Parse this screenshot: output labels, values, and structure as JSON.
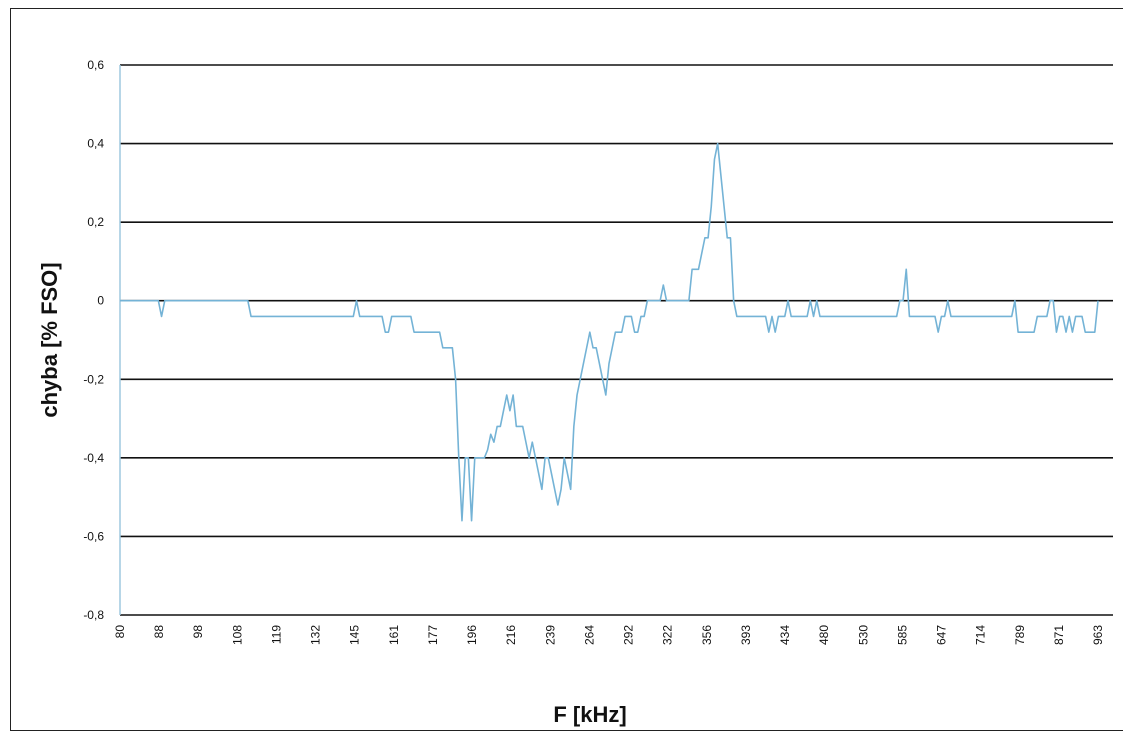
{
  "chart_data": {
    "type": "line",
    "title": "",
    "xlabel": "F [kHz]",
    "ylabel": "chyba [% FSO]",
    "ylim": [
      -0.8,
      0.6
    ],
    "yticks": [
      0.6,
      0.4,
      0.2,
      0,
      -0.2,
      -0.4,
      -0.6,
      -0.8
    ],
    "ytick_labels": [
      "0,6",
      "0,4",
      "0,2",
      "0",
      "-0,2",
      "-0,4",
      "-0,6",
      "-0,8"
    ],
    "x_tick_labels": [
      "80",
      "88",
      "98",
      "108",
      "119",
      "132",
      "145",
      "161",
      "177",
      "196",
      "216",
      "239",
      "264",
      "292",
      "322",
      "356",
      "393",
      "434",
      "480",
      "530",
      "585",
      "647",
      "714",
      "789",
      "871",
      "963"
    ],
    "grid": true,
    "legend": "none",
    "colors": {
      "line": "#74b3d6",
      "grid": "#111111",
      "axis": "#9fc9df"
    },
    "series": [
      {
        "values": [
          0,
          0,
          0,
          0,
          0,
          0,
          0,
          0,
          0,
          0,
          0,
          0,
          0,
          -0.04,
          0,
          0,
          0,
          0,
          0,
          0,
          0,
          0,
          0,
          0,
          0,
          0,
          0,
          0,
          0,
          0,
          0,
          0,
          0,
          0,
          0,
          0,
          0,
          0,
          0,
          0,
          0,
          -0.04,
          -0.04,
          -0.04,
          -0.04,
          -0.04,
          -0.04,
          -0.04,
          -0.04,
          -0.04,
          -0.04,
          -0.04,
          -0.04,
          -0.04,
          -0.04,
          -0.04,
          -0.04,
          -0.04,
          -0.04,
          -0.04,
          -0.04,
          -0.04,
          -0.04,
          -0.04,
          -0.04,
          -0.04,
          -0.04,
          -0.04,
          -0.04,
          -0.04,
          -0.04,
          -0.04,
          -0.04,
          -0.04,
          0,
          -0.04,
          -0.04,
          -0.04,
          -0.04,
          -0.04,
          -0.04,
          -0.04,
          -0.04,
          -0.08,
          -0.08,
          -0.04,
          -0.04,
          -0.04,
          -0.04,
          -0.04,
          -0.04,
          -0.04,
          -0.08,
          -0.08,
          -0.08,
          -0.08,
          -0.08,
          -0.08,
          -0.08,
          -0.08,
          -0.08,
          -0.12,
          -0.12,
          -0.12,
          -0.12,
          -0.2,
          -0.4,
          -0.56,
          -0.4,
          -0.4,
          -0.56,
          -0.4,
          -0.4,
          -0.4,
          -0.4,
          -0.38,
          -0.34,
          -0.36,
          -0.32,
          -0.32,
          -0.28,
          -0.24,
          -0.28,
          -0.24,
          -0.32,
          -0.32,
          -0.32,
          -0.36,
          -0.4,
          -0.36,
          -0.4,
          -0.44,
          -0.48,
          -0.4,
          -0.4,
          -0.44,
          -0.48,
          -0.52,
          -0.48,
          -0.4,
          -0.44,
          -0.48,
          -0.32,
          -0.24,
          -0.2,
          -0.16,
          -0.12,
          -0.08,
          -0.12,
          -0.12,
          -0.16,
          -0.2,
          -0.24,
          -0.16,
          -0.12,
          -0.08,
          -0.08,
          -0.08,
          -0.04,
          -0.04,
          -0.04,
          -0.08,
          -0.08,
          -0.04,
          -0.04,
          0,
          0,
          0,
          0,
          0,
          0.04,
          0,
          0,
          0,
          0,
          0,
          0,
          0,
          0,
          0.08,
          0.08,
          0.08,
          0.12,
          0.16,
          0.16,
          0.24,
          0.36,
          0.4,
          0.32,
          0.24,
          0.16,
          0.16,
          0,
          -0.04,
          -0.04,
          -0.04,
          -0.04,
          -0.04,
          -0.04,
          -0.04,
          -0.04,
          -0.04,
          -0.04,
          -0.08,
          -0.04,
          -0.08,
          -0.04,
          -0.04,
          -0.04,
          0,
          -0.04,
          -0.04,
          -0.04,
          -0.04,
          -0.04,
          -0.04,
          0,
          -0.04,
          0,
          -0.04,
          -0.04,
          -0.04,
          -0.04,
          -0.04,
          -0.04,
          -0.04,
          -0.04,
          -0.04,
          -0.04,
          -0.04,
          -0.04,
          -0.04,
          -0.04,
          -0.04,
          -0.04,
          -0.04,
          -0.04,
          -0.04,
          -0.04,
          -0.04,
          -0.04,
          -0.04,
          -0.04,
          -0.04,
          0,
          0,
          0.08,
          -0.04,
          -0.04,
          -0.04,
          -0.04,
          -0.04,
          -0.04,
          -0.04,
          -0.04,
          -0.04,
          -0.08,
          -0.04,
          -0.04,
          0,
          -0.04,
          -0.04,
          -0.04,
          -0.04,
          -0.04,
          -0.04,
          -0.04,
          -0.04,
          -0.04,
          -0.04,
          -0.04,
          -0.04,
          -0.04,
          -0.04,
          -0.04,
          -0.04,
          -0.04,
          -0.04,
          -0.04,
          -0.04,
          0,
          -0.08,
          -0.08,
          -0.08,
          -0.08,
          -0.08,
          -0.08,
          -0.04,
          -0.04,
          -0.04,
          -0.04,
          0,
          0,
          -0.08,
          -0.04,
          -0.04,
          -0.08,
          -0.04,
          -0.08,
          -0.04,
          -0.04,
          -0.04,
          -0.08,
          -0.08,
          -0.08,
          -0.08,
          0
        ]
      }
    ]
  }
}
